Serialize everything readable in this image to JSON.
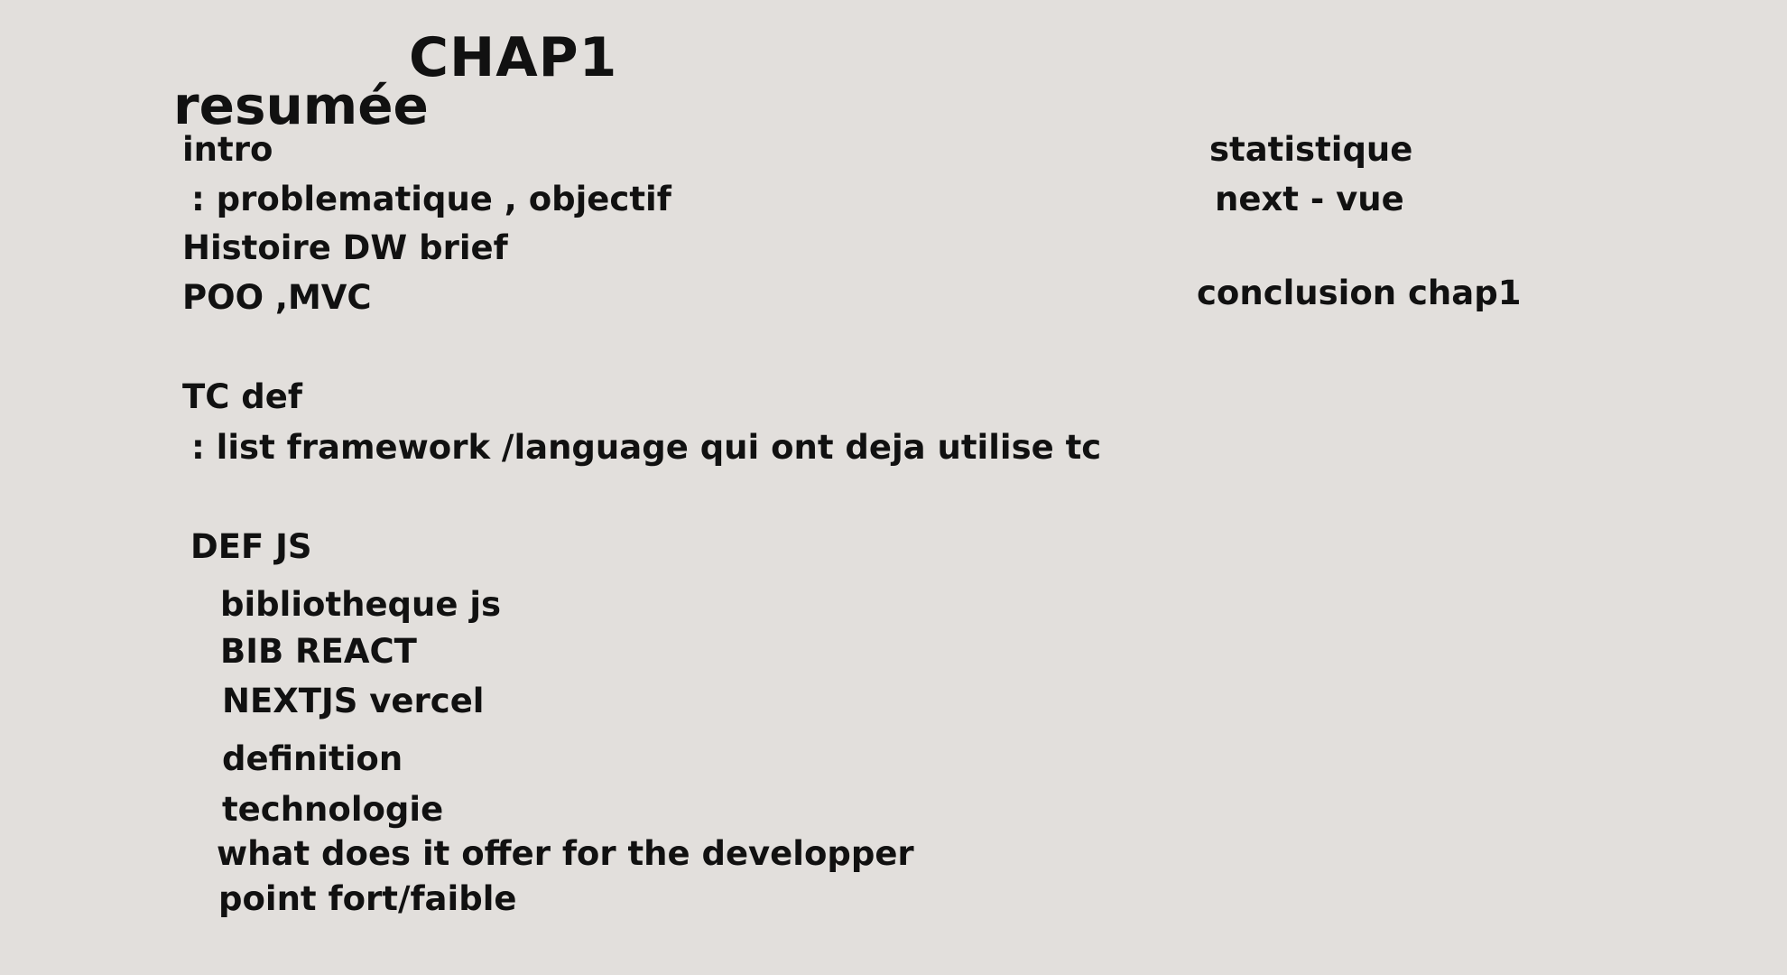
{
  "heading": {
    "title": "CHAP1",
    "subtitle": "resumée"
  },
  "left_column": [
    "intro",
    ": problematique , objectif",
    "Histoire DW brief",
    "POO ,MVC",
    "TC def",
    ": list framework /language qui ont deja utilise tc",
    "DEF JS",
    "bibliotheque js",
    "BIB REACT",
    "NEXTJS vercel",
    "definition",
    "technologie",
    "what does it offer for the developper",
    "point fort/faible"
  ],
  "right_column": [
    "statistique",
    "next - vue",
    "conclusion chap1"
  ]
}
